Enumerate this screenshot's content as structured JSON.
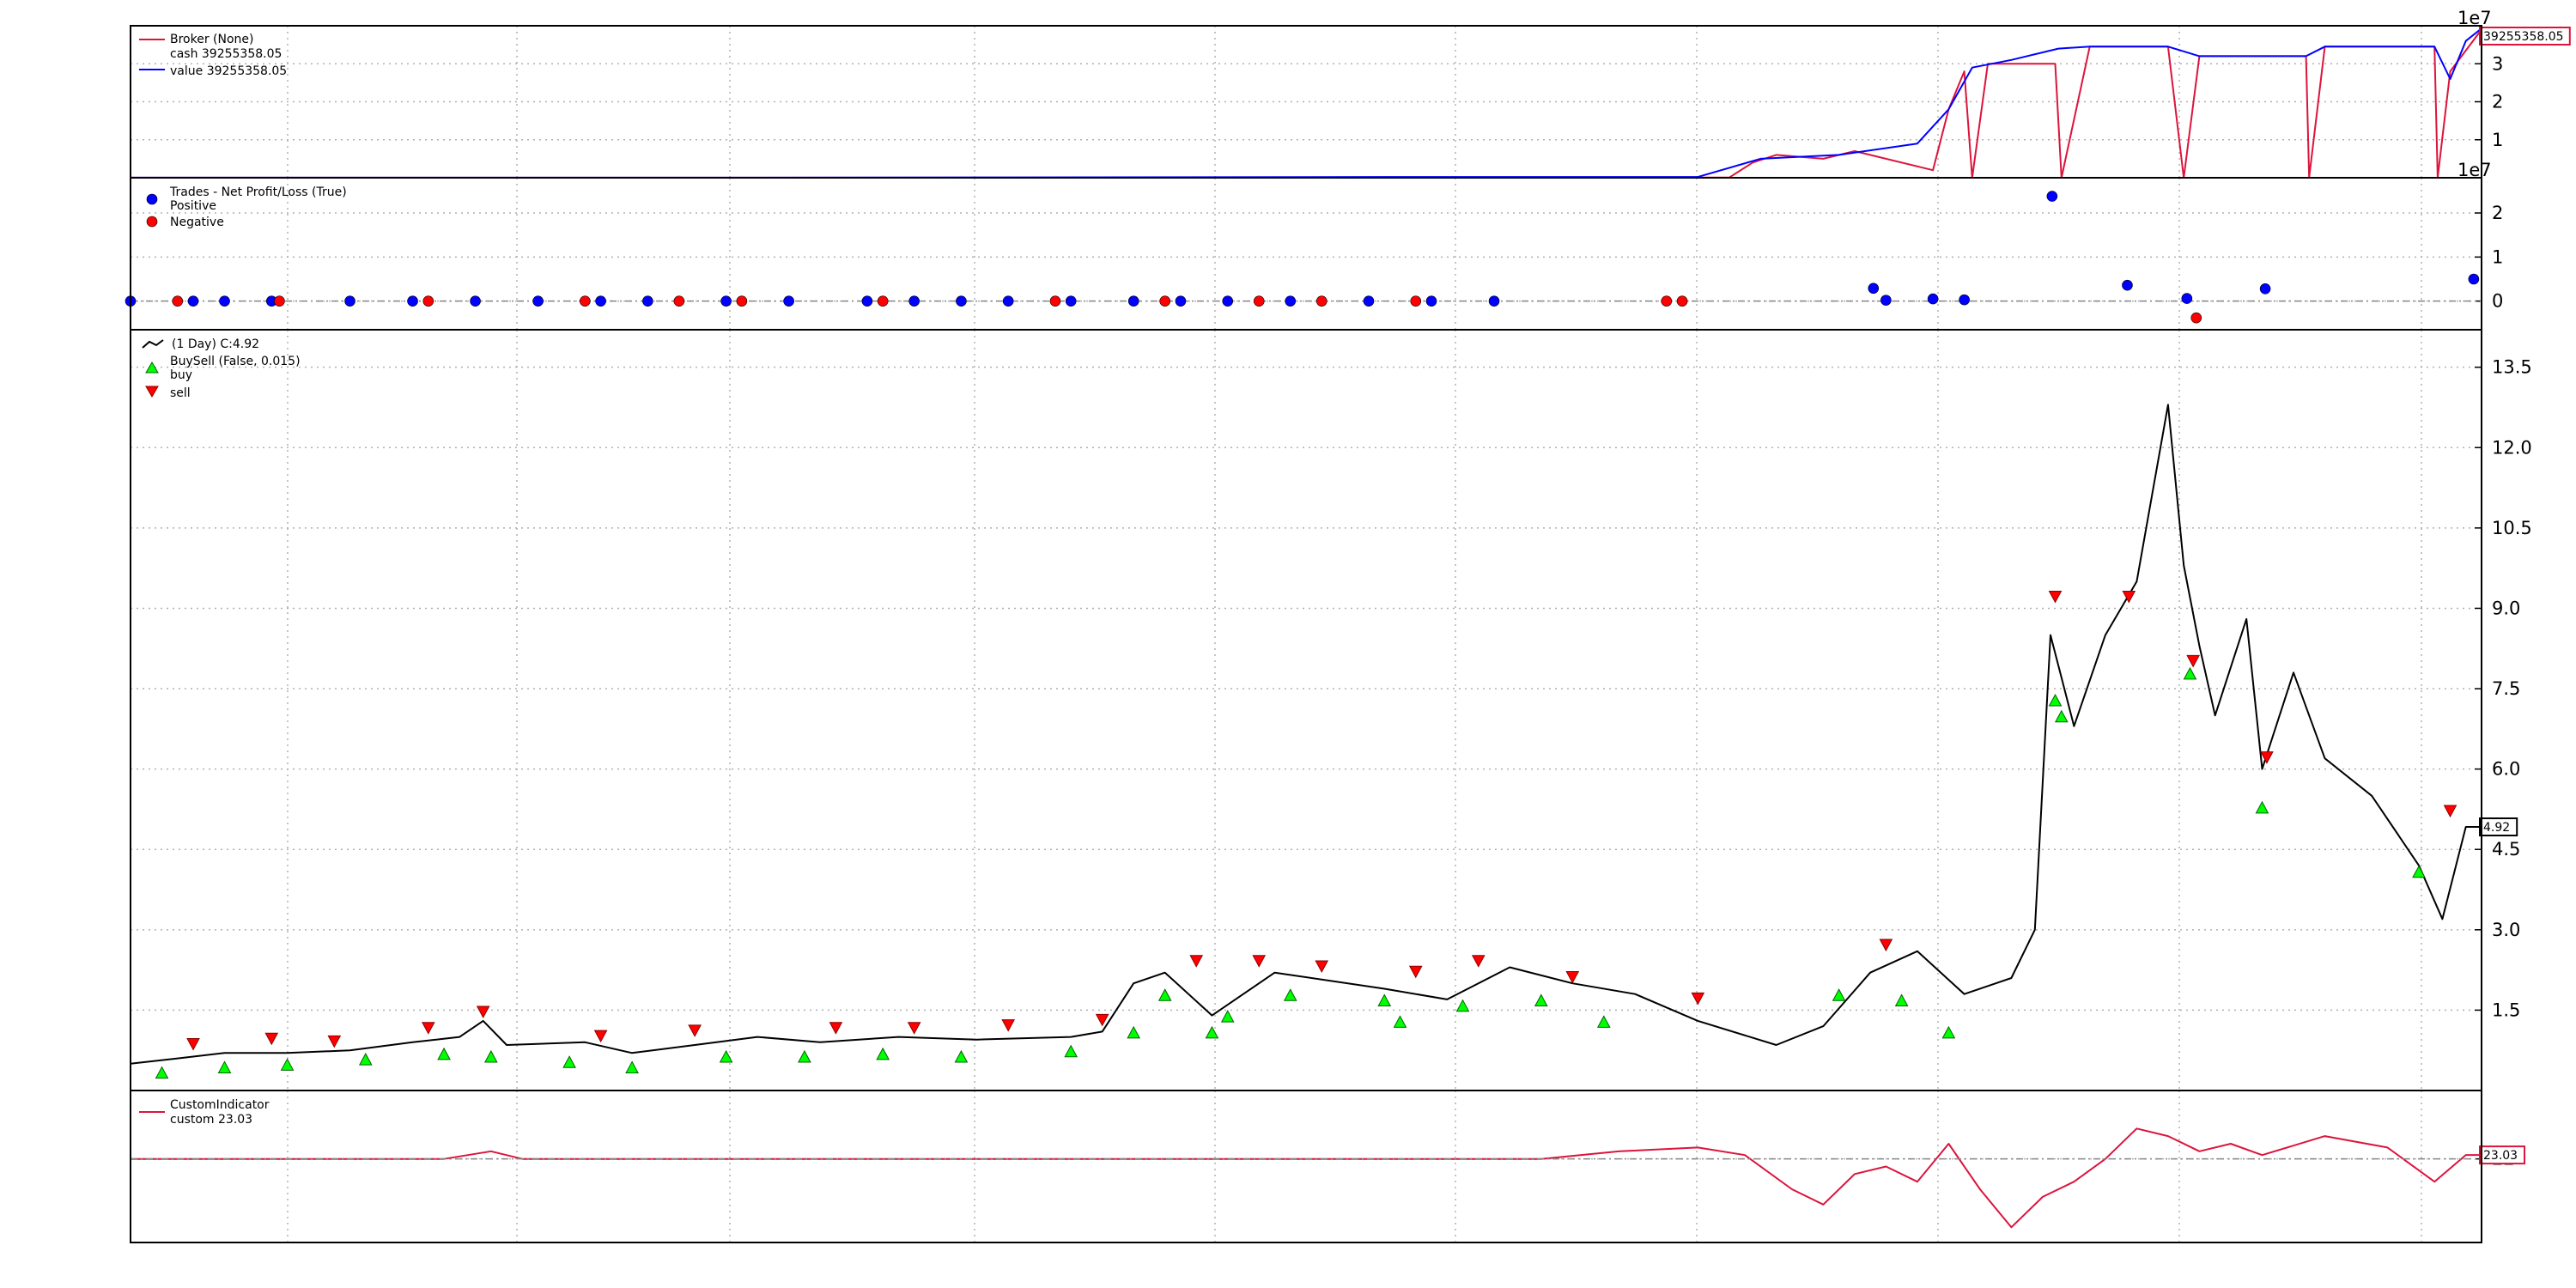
{
  "chart_data": [
    {
      "panel": "broker",
      "type": "line",
      "series": [
        {
          "name": "cash",
          "label": "cash 39255358.05",
          "color": "#dc143c",
          "points": [
            [
              0,
              0.0015
            ],
            [
              400,
              0.002
            ],
            [
              560,
              0.003
            ],
            [
              800,
              0.004
            ],
            [
              1020,
              0.005
            ],
            [
              1035,
              0.4
            ],
            [
              1050,
              0.6
            ],
            [
              1080,
              0.5
            ],
            [
              1100,
              0.7
            ],
            [
              1150,
              0.2
            ],
            [
              1160,
              1.8
            ],
            [
              1170,
              2.8
            ],
            [
              1175,
              0.0
            ],
            [
              1185,
              3.0
            ],
            [
              1228,
              3.0
            ],
            [
              1232,
              0.0
            ],
            [
              1250,
              3.45
            ],
            [
              1300,
              3.45
            ],
            [
              1310,
              0.0
            ],
            [
              1320,
              3.2
            ],
            [
              1388,
              3.2
            ],
            [
              1390,
              0.0
            ],
            [
              1400,
              3.45
            ],
            [
              1470,
              3.45
            ],
            [
              1472,
              0.0
            ],
            [
              1480,
              2.8
            ],
            [
              1500,
              3.9
            ]
          ]
        },
        {
          "name": "value",
          "label": "value 39255358.05",
          "color": "#0000ff",
          "points": [
            [
              0,
              0.0015
            ],
            [
              400,
              0.003
            ],
            [
              560,
              0.01
            ],
            [
              800,
              0.02
            ],
            [
              1000,
              0.02
            ],
            [
              1040,
              0.5
            ],
            [
              1090,
              0.6
            ],
            [
              1140,
              0.9
            ],
            [
              1160,
              1.8
            ],
            [
              1175,
              2.9
            ],
            [
              1200,
              3.1
            ],
            [
              1230,
              3.4
            ],
            [
              1250,
              3.45
            ],
            [
              1300,
              3.45
            ],
            [
              1320,
              3.2
            ],
            [
              1388,
              3.2
            ],
            [
              1400,
              3.45
            ],
            [
              1470,
              3.45
            ],
            [
              1480,
              2.6
            ],
            [
              1490,
              3.6
            ],
            [
              1500,
              3.93
            ]
          ]
        }
      ],
      "legend_title": "Broker (None)",
      "yticks": [
        1,
        2,
        3
      ],
      "exponent_label": "1e7",
      "ylim": [
        0,
        4.0
      ],
      "last_value_label": "39255358.05"
    },
    {
      "panel": "trades",
      "type": "scatter",
      "legend_title": "Trades - Net Profit/Loss (True)",
      "series": [
        {
          "name": "Positive",
          "color": "#0000ff",
          "points": [
            [
              0,
              0
            ],
            [
              40,
              0
            ],
            [
              60,
              0
            ],
            [
              90,
              0
            ],
            [
              140,
              0
            ],
            [
              180,
              0
            ],
            [
              220,
              0
            ],
            [
              260,
              0
            ],
            [
              300,
              0
            ],
            [
              330,
              0
            ],
            [
              380,
              0
            ],
            [
              420,
              0
            ],
            [
              470,
              0
            ],
            [
              500,
              0
            ],
            [
              530,
              0
            ],
            [
              560,
              0
            ],
            [
              600,
              0
            ],
            [
              640,
              0
            ],
            [
              670,
              0
            ],
            [
              700,
              0
            ],
            [
              740,
              0
            ],
            [
              790,
              0
            ],
            [
              830,
              0
            ],
            [
              870,
              0
            ],
            [
              1112,
              0.29
            ],
            [
              1120,
              0.02
            ],
            [
              1150,
              0.05
            ],
            [
              1170,
              0.03
            ],
            [
              1226,
              2.38
            ],
            [
              1274,
              0.36
            ],
            [
              1312,
              0.06
            ],
            [
              1362,
              0.28
            ],
            [
              1495,
              0.5
            ]
          ]
        },
        {
          "name": "Negative",
          "color": "#ff0000",
          "points": [
            [
              30,
              0
            ],
            [
              95,
              0
            ],
            [
              190,
              0
            ],
            [
              290,
              0
            ],
            [
              350,
              0
            ],
            [
              390,
              0
            ],
            [
              480,
              0
            ],
            [
              590,
              0
            ],
            [
              660,
              0
            ],
            [
              720,
              0
            ],
            [
              760,
              0
            ],
            [
              820,
              0
            ],
            [
              980,
              0
            ],
            [
              990,
              0
            ],
            [
              1318,
              -0.38
            ]
          ]
        }
      ],
      "yticks": [
        0,
        1,
        2
      ],
      "exponent_label": "1e7",
      "ylim": [
        -0.65,
        2.8
      ]
    },
    {
      "panel": "price",
      "type": "line",
      "series": [
        {
          "name": "(1 Day) C:4.92",
          "label": "(1 Day) C:4.92",
          "color": "#000000",
          "points": [
            [
              0,
              0.5
            ],
            [
              30,
              0.6
            ],
            [
              60,
              0.7
            ],
            [
              100,
              0.7
            ],
            [
              140,
              0.75
            ],
            [
              180,
              0.9
            ],
            [
              210,
              1.0
            ],
            [
              225,
              1.3
            ],
            [
              240,
              0.85
            ],
            [
              290,
              0.9
            ],
            [
              320,
              0.7
            ],
            [
              360,
              0.85
            ],
            [
              400,
              1.0
            ],
            [
              440,
              0.9
            ],
            [
              490,
              1.0
            ],
            [
              540,
              0.95
            ],
            [
              600,
              1.0
            ],
            [
              620,
              1.1
            ],
            [
              640,
              2.0
            ],
            [
              660,
              2.2
            ],
            [
              690,
              1.4
            ],
            [
              730,
              2.2
            ],
            [
              800,
              1.9
            ],
            [
              840,
              1.7
            ],
            [
              880,
              2.3
            ],
            [
              920,
              2.0
            ],
            [
              960,
              1.8
            ],
            [
              1000,
              1.3
            ],
            [
              1050,
              0.85
            ],
            [
              1080,
              1.2
            ],
            [
              1110,
              2.2
            ],
            [
              1140,
              2.6
            ],
            [
              1170,
              1.8
            ],
            [
              1200,
              2.1
            ],
            [
              1215,
              3.0
            ],
            [
              1225,
              8.5
            ],
            [
              1240,
              6.8
            ],
            [
              1260,
              8.5
            ],
            [
              1280,
              9.5
            ],
            [
              1300,
              12.8
            ],
            [
              1310,
              9.8
            ],
            [
              1320,
              8.3
            ],
            [
              1330,
              7.0
            ],
            [
              1350,
              8.8
            ],
            [
              1360,
              6.0
            ],
            [
              1380,
              7.8
            ],
            [
              1400,
              6.2
            ],
            [
              1430,
              5.5
            ],
            [
              1460,
              4.2
            ],
            [
              1475,
              3.2
            ],
            [
              1490,
              4.92
            ],
            [
              1500,
              4.92
            ]
          ]
        }
      ],
      "markers": {
        "legend_title": "BuySell (False, 0.015)",
        "buy": {
          "name": "buy",
          "color": "#00ff00",
          "points": [
            [
              20,
              0.55
            ],
            [
              60,
              0.65
            ],
            [
              100,
              0.7
            ],
            [
              150,
              0.8
            ],
            [
              200,
              0.9
            ],
            [
              230,
              0.85
            ],
            [
              280,
              0.75
            ],
            [
              320,
              0.65
            ],
            [
              380,
              0.85
            ],
            [
              430,
              0.85
            ],
            [
              480,
              0.9
            ],
            [
              530,
              0.85
            ],
            [
              600,
              0.95
            ],
            [
              640,
              1.3
            ],
            [
              660,
              2.0
            ],
            [
              690,
              1.3
            ],
            [
              700,
              1.6
            ],
            [
              740,
              2.0
            ],
            [
              800,
              1.9
            ],
            [
              810,
              1.5
            ],
            [
              850,
              1.8
            ],
            [
              900,
              1.9
            ],
            [
              940,
              1.5
            ],
            [
              1090,
              2.0
            ],
            [
              1130,
              1.9
            ],
            [
              1160,
              1.3
            ],
            [
              1228,
              7.5
            ],
            [
              1232,
              7.2
            ],
            [
              1314,
              8.0
            ],
            [
              1360,
              5.5
            ],
            [
              1460,
              4.3
            ]
          ]
        },
        "sell": {
          "name": "sell",
          "color": "#ff0000",
          "points": [
            [
              40,
              0.65
            ],
            [
              90,
              0.75
            ],
            [
              130,
              0.7
            ],
            [
              190,
              0.95
            ],
            [
              225,
              1.25
            ],
            [
              300,
              0.8
            ],
            [
              360,
              0.9
            ],
            [
              450,
              0.95
            ],
            [
              500,
              0.95
            ],
            [
              560,
              1.0
            ],
            [
              620,
              1.1
            ],
            [
              680,
              2.2
            ],
            [
              720,
              2.2
            ],
            [
              760,
              2.1
            ],
            [
              820,
              2.0
            ],
            [
              860,
              2.2
            ],
            [
              920,
              1.9
            ],
            [
              1000,
              1.5
            ],
            [
              1120,
              2.5
            ],
            [
              1228,
              9.0
            ],
            [
              1275,
              9.0
            ],
            [
              1316,
              7.8
            ],
            [
              1363,
              6.0
            ],
            [
              1480,
              5.0
            ]
          ]
        }
      },
      "yticks": [
        1.5,
        3.0,
        4.5,
        6.0,
        7.5,
        9.0,
        10.5,
        12.0,
        13.5
      ],
      "ylim": [
        0,
        14.2
      ],
      "last_value_label": "4.92"
    },
    {
      "panel": "indicator",
      "type": "line",
      "legend_title": "CustomIndicator",
      "series": [
        {
          "name": "custom",
          "label": "custom 23.03",
          "color": "#dc143c",
          "points": [
            [
              0,
              22
            ],
            [
              200,
              22
            ],
            [
              230,
              24
            ],
            [
              250,
              22
            ],
            [
              650,
              22
            ],
            [
              900,
              22
            ],
            [
              950,
              24
            ],
            [
              1000,
              25
            ],
            [
              1030,
              23
            ],
            [
              1060,
              14
            ],
            [
              1080,
              10
            ],
            [
              1100,
              18
            ],
            [
              1120,
              20
            ],
            [
              1140,
              16
            ],
            [
              1160,
              26
            ],
            [
              1180,
              14
            ],
            [
              1200,
              4
            ],
            [
              1220,
              12
            ],
            [
              1240,
              16
            ],
            [
              1260,
              22
            ],
            [
              1280,
              30
            ],
            [
              1300,
              28
            ],
            [
              1320,
              24
            ],
            [
              1340,
              26
            ],
            [
              1360,
              23
            ],
            [
              1400,
              28
            ],
            [
              1440,
              25
            ],
            [
              1470,
              16
            ],
            [
              1490,
              23.03
            ],
            [
              1500,
              23.03
            ]
          ]
        }
      ],
      "yticks": [
        22
      ],
      "ylim": [
        0,
        40
      ],
      "last_value_label": "23.03"
    }
  ],
  "axis": {
    "xlim": [
      0,
      1500
    ]
  },
  "legend_text": {
    "broker_title": "Broker (None)",
    "cash": "cash 39255358.05",
    "value": "value 39255358.05",
    "trades_title": "Trades - Net Profit/Loss (True)",
    "positive": "Positive",
    "negative": "Negative",
    "price": "(1 Day) C:4.92",
    "buysell_title": "BuySell (False, 0.015)",
    "buy": "buy",
    "sell": "sell",
    "indicator_title": "CustomIndicator",
    "custom": "custom 23.03"
  }
}
